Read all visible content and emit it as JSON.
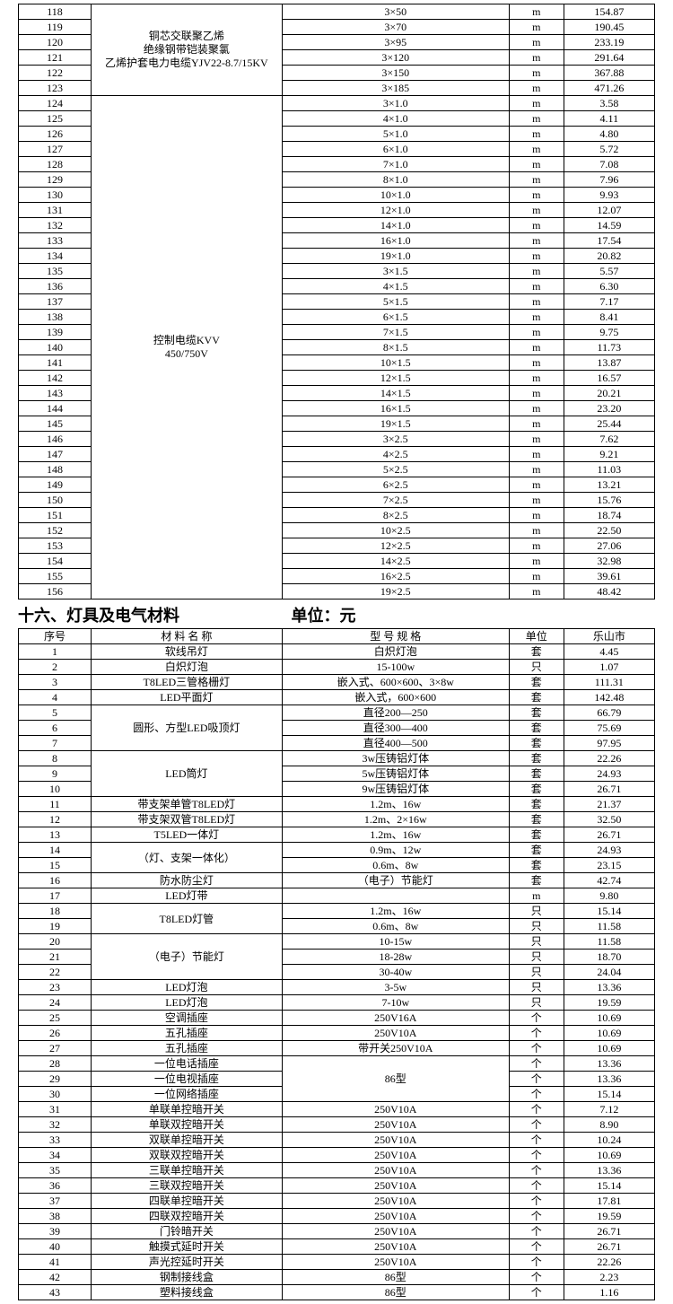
{
  "table1": {
    "groups": [
      {
        "name_lines": [
          "铜芯交联聚乙烯",
          "绝缘钢带铠装聚氯",
          "乙烯护套电力电缆YJV22-8.7/15KV"
        ],
        "rows": [
          {
            "idx": "118",
            "spec": "3×50",
            "unit": "m",
            "price": "154.87"
          },
          {
            "idx": "119",
            "spec": "3×70",
            "unit": "m",
            "price": "190.45"
          },
          {
            "idx": "120",
            "spec": "3×95",
            "unit": "m",
            "price": "233.19"
          },
          {
            "idx": "121",
            "spec": "3×120",
            "unit": "m",
            "price": "291.64"
          },
          {
            "idx": "122",
            "spec": "3×150",
            "unit": "m",
            "price": "367.88"
          },
          {
            "idx": "123",
            "spec": "3×185",
            "unit": "m",
            "price": "471.26"
          }
        ]
      },
      {
        "name_lines": [
          "控制电缆KVV",
          "450/750V"
        ],
        "rows": [
          {
            "idx": "124",
            "spec": "3×1.0",
            "unit": "m",
            "price": "3.58"
          },
          {
            "idx": "125",
            "spec": "4×1.0",
            "unit": "m",
            "price": "4.11"
          },
          {
            "idx": "126",
            "spec": "5×1.0",
            "unit": "m",
            "price": "4.80"
          },
          {
            "idx": "127",
            "spec": "6×1.0",
            "unit": "m",
            "price": "5.72"
          },
          {
            "idx": "128",
            "spec": "7×1.0",
            "unit": "m",
            "price": "7.08"
          },
          {
            "idx": "129",
            "spec": "8×1.0",
            "unit": "m",
            "price": "7.96"
          },
          {
            "idx": "130",
            "spec": "10×1.0",
            "unit": "m",
            "price": "9.93"
          },
          {
            "idx": "131",
            "spec": "12×1.0",
            "unit": "m",
            "price": "12.07"
          },
          {
            "idx": "132",
            "spec": "14×1.0",
            "unit": "m",
            "price": "14.59"
          },
          {
            "idx": "133",
            "spec": "16×1.0",
            "unit": "m",
            "price": "17.54"
          },
          {
            "idx": "134",
            "spec": "19×1.0",
            "unit": "m",
            "price": "20.82"
          },
          {
            "idx": "135",
            "spec": "3×1.5",
            "unit": "m",
            "price": "5.57"
          },
          {
            "idx": "136",
            "spec": "4×1.5",
            "unit": "m",
            "price": "6.30"
          },
          {
            "idx": "137",
            "spec": "5×1.5",
            "unit": "m",
            "price": "7.17"
          },
          {
            "idx": "138",
            "spec": "6×1.5",
            "unit": "m",
            "price": "8.41"
          },
          {
            "idx": "139",
            "spec": "7×1.5",
            "unit": "m",
            "price": "9.75"
          },
          {
            "idx": "140",
            "spec": "8×1.5",
            "unit": "m",
            "price": "11.73"
          },
          {
            "idx": "141",
            "spec": "10×1.5",
            "unit": "m",
            "price": "13.87"
          },
          {
            "idx": "142",
            "spec": "12×1.5",
            "unit": "m",
            "price": "16.57"
          },
          {
            "idx": "143",
            "spec": "14×1.5",
            "unit": "m",
            "price": "20.21"
          },
          {
            "idx": "144",
            "spec": "16×1.5",
            "unit": "m",
            "price": "23.20"
          },
          {
            "idx": "145",
            "spec": "19×1.5",
            "unit": "m",
            "price": "25.44"
          },
          {
            "idx": "146",
            "spec": "3×2.5",
            "unit": "m",
            "price": "7.62"
          },
          {
            "idx": "147",
            "spec": "4×2.5",
            "unit": "m",
            "price": "9.21"
          },
          {
            "idx": "148",
            "spec": "5×2.5",
            "unit": "m",
            "price": "11.03"
          },
          {
            "idx": "149",
            "spec": "6×2.5",
            "unit": "m",
            "price": "13.21"
          },
          {
            "idx": "150",
            "spec": "7×2.5",
            "unit": "m",
            "price": "15.76"
          },
          {
            "idx": "151",
            "spec": "8×2.5",
            "unit": "m",
            "price": "18.74"
          },
          {
            "idx": "152",
            "spec": "10×2.5",
            "unit": "m",
            "price": "22.50"
          },
          {
            "idx": "153",
            "spec": "12×2.5",
            "unit": "m",
            "price": "27.06"
          },
          {
            "idx": "154",
            "spec": "14×2.5",
            "unit": "m",
            "price": "32.98"
          },
          {
            "idx": "155",
            "spec": "16×2.5",
            "unit": "m",
            "price": "39.61"
          },
          {
            "idx": "156",
            "spec": "19×2.5",
            "unit": "m",
            "price": "48.42"
          }
        ]
      }
    ]
  },
  "section_header": {
    "title": "十六、灯具及电气材料",
    "unit_label": "单位：元"
  },
  "table2": {
    "header": {
      "idx": "序号",
      "name": "材 料 名 称",
      "spec": "型 号 规 格",
      "unit": "单位",
      "price": "乐山市"
    },
    "rows": [
      {
        "idx": "1",
        "name": "软线吊灯",
        "spec": "白炽灯泡",
        "unit": "套",
        "price": "4.45",
        "name_rowspan": 1,
        "spec_rowspan": 1
      },
      {
        "idx": "2",
        "name": "白炽灯泡",
        "spec": "15-100w",
        "unit": "只",
        "price": "1.07",
        "name_rowspan": 1,
        "spec_rowspan": 1
      },
      {
        "idx": "3",
        "name": "T8LED三管格栅灯",
        "spec": "嵌入式、600×600、3×8w",
        "unit": "套",
        "price": "111.31",
        "name_rowspan": 1,
        "spec_rowspan": 1
      },
      {
        "idx": "4",
        "name": "LED平面灯",
        "spec": "嵌入式，600×600",
        "unit": "套",
        "price": "142.48",
        "name_rowspan": 1,
        "spec_rowspan": 1
      },
      {
        "idx": "5",
        "name": "圆形、方型LED吸顶灯",
        "spec": "直径200—250",
        "unit": "套",
        "price": "66.79",
        "name_rowspan": 3,
        "spec_rowspan": 1
      },
      {
        "idx": "6",
        "spec": "直径300—400",
        "unit": "套",
        "price": "75.69",
        "spec_rowspan": 1
      },
      {
        "idx": "7",
        "spec": "直径400—500",
        "unit": "套",
        "price": "97.95",
        "spec_rowspan": 1
      },
      {
        "idx": "8",
        "name": "LED筒灯",
        "spec": "3w压铸铝灯体",
        "unit": "套",
        "price": "22.26",
        "name_rowspan": 3,
        "spec_rowspan": 1
      },
      {
        "idx": "9",
        "spec": "5w压铸铝灯体",
        "unit": "套",
        "price": "24.93",
        "spec_rowspan": 1
      },
      {
        "idx": "10",
        "spec": "9w压铸铝灯体",
        "unit": "套",
        "price": "26.71",
        "spec_rowspan": 1
      },
      {
        "idx": "11",
        "name": "带支架单管T8LED灯",
        "spec": "1.2m、16w",
        "unit": "套",
        "price": "21.37",
        "name_rowspan": 1,
        "spec_rowspan": 1
      },
      {
        "idx": "12",
        "name": "带支架双管T8LED灯",
        "spec": "1.2m、2×16w",
        "unit": "套",
        "price": "32.50",
        "name_rowspan": 1,
        "spec_rowspan": 1
      },
      {
        "idx": "13",
        "name": "T5LED一体灯",
        "spec": "1.2m、16w",
        "unit": "套",
        "price": "26.71",
        "name_rowspan": 1,
        "spec_rowspan": 1
      },
      {
        "idx": "14",
        "name": "（灯、支架一体化）",
        "spec": "0.9m、12w",
        "unit": "套",
        "price": "24.93",
        "name_rowspan": 2,
        "spec_rowspan": 1
      },
      {
        "idx": "15",
        "spec": "0.6m、8w",
        "unit": "套",
        "price": "23.15",
        "spec_rowspan": 1
      },
      {
        "idx": "16",
        "name": "防水防尘灯",
        "spec": "（电子）节能灯",
        "unit": "套",
        "price": "42.74",
        "name_rowspan": 1,
        "spec_rowspan": 1
      },
      {
        "idx": "17",
        "name": "LED灯带",
        "spec": "",
        "unit": "m",
        "price": "9.80",
        "name_rowspan": 1,
        "spec_rowspan": 1
      },
      {
        "idx": "18",
        "name": "T8LED灯管",
        "spec": "1.2m、16w",
        "unit": "只",
        "price": "15.14",
        "name_rowspan": 2,
        "spec_rowspan": 1
      },
      {
        "idx": "19",
        "spec": "0.6m、8w",
        "unit": "只",
        "price": "11.58",
        "spec_rowspan": 1
      },
      {
        "idx": "20",
        "name": "（电子）节能灯",
        "spec": "10-15w",
        "unit": "只",
        "price": "11.58",
        "name_rowspan": 3,
        "spec_rowspan": 1
      },
      {
        "idx": "21",
        "spec": "18-28w",
        "unit": "只",
        "price": "18.70",
        "spec_rowspan": 1
      },
      {
        "idx": "22",
        "spec": "30-40w",
        "unit": "只",
        "price": "24.04",
        "spec_rowspan": 1
      },
      {
        "idx": "23",
        "name": "LED灯泡",
        "spec": "3-5w",
        "unit": "只",
        "price": "13.36",
        "name_rowspan": 1,
        "spec_rowspan": 1
      },
      {
        "idx": "24",
        "name": "LED灯泡",
        "spec": "7-10w",
        "unit": "只",
        "price": "19.59",
        "name_rowspan": 1,
        "spec_rowspan": 1
      },
      {
        "idx": "25",
        "name": "空调插座",
        "spec": "250V16A",
        "unit": "个",
        "price": "10.69",
        "name_rowspan": 1,
        "spec_rowspan": 1
      },
      {
        "idx": "26",
        "name": "五孔插座",
        "spec": "250V10A",
        "unit": "个",
        "price": "10.69",
        "name_rowspan": 1,
        "spec_rowspan": 1
      },
      {
        "idx": "27",
        "name": "五孔插座",
        "spec": "带开关250V10A",
        "unit": "个",
        "price": "10.69",
        "name_rowspan": 1,
        "spec_rowspan": 1
      },
      {
        "idx": "28",
        "name": "一位电话插座",
        "spec": "86型",
        "unit": "个",
        "price": "13.36",
        "name_rowspan": 1,
        "spec_rowspan": 3
      },
      {
        "idx": "29",
        "name": "一位电视插座",
        "unit": "个",
        "price": "13.36",
        "name_rowspan": 1
      },
      {
        "idx": "30",
        "name": "一位网络插座",
        "unit": "个",
        "price": "15.14",
        "name_rowspan": 1
      },
      {
        "idx": "31",
        "name": "单联单控暗开关",
        "spec": "250V10A",
        "unit": "个",
        "price": "7.12",
        "name_rowspan": 1,
        "spec_rowspan": 1
      },
      {
        "idx": "32",
        "name": "单联双控暗开关",
        "spec": "250V10A",
        "unit": "个",
        "price": "8.90",
        "name_rowspan": 1,
        "spec_rowspan": 1
      },
      {
        "idx": "33",
        "name": "双联单控暗开关",
        "spec": "250V10A",
        "unit": "个",
        "price": "10.24",
        "name_rowspan": 1,
        "spec_rowspan": 1
      },
      {
        "idx": "34",
        "name": "双联双控暗开关",
        "spec": "250V10A",
        "unit": "个",
        "price": "10.69",
        "name_rowspan": 1,
        "spec_rowspan": 1
      },
      {
        "idx": "35",
        "name": "三联单控暗开关",
        "spec": "250V10A",
        "unit": "个",
        "price": "13.36",
        "name_rowspan": 1,
        "spec_rowspan": 1
      },
      {
        "idx": "36",
        "name": "三联双控暗开关",
        "spec": "250V10A",
        "unit": "个",
        "price": "15.14",
        "name_rowspan": 1,
        "spec_rowspan": 1
      },
      {
        "idx": "37",
        "name": "四联单控暗开关",
        "spec": "250V10A",
        "unit": "个",
        "price": "17.81",
        "name_rowspan": 1,
        "spec_rowspan": 1
      },
      {
        "idx": "38",
        "name": "四联双控暗开关",
        "spec": "250V10A",
        "unit": "个",
        "price": "19.59",
        "name_rowspan": 1,
        "spec_rowspan": 1
      },
      {
        "idx": "39",
        "name": "门铃暗开关",
        "spec": "250V10A",
        "unit": "个",
        "price": "26.71",
        "name_rowspan": 1,
        "spec_rowspan": 1
      },
      {
        "idx": "40",
        "name": "触摸式延时开关",
        "spec": "250V10A",
        "unit": "个",
        "price": "26.71",
        "name_rowspan": 1,
        "spec_rowspan": 1
      },
      {
        "idx": "41",
        "name": "声光控延时开关",
        "spec": "250V10A",
        "unit": "个",
        "price": "22.26",
        "name_rowspan": 1,
        "spec_rowspan": 1
      },
      {
        "idx": "42",
        "name": "钢制接线盒",
        "spec": "86型",
        "unit": "个",
        "price": "2.23",
        "name_rowspan": 1,
        "spec_rowspan": 1
      },
      {
        "idx": "43",
        "name": "塑料接线盒",
        "spec": "86型",
        "unit": "个",
        "price": "1.16",
        "name_rowspan": 1,
        "spec_rowspan": 1
      }
    ]
  }
}
